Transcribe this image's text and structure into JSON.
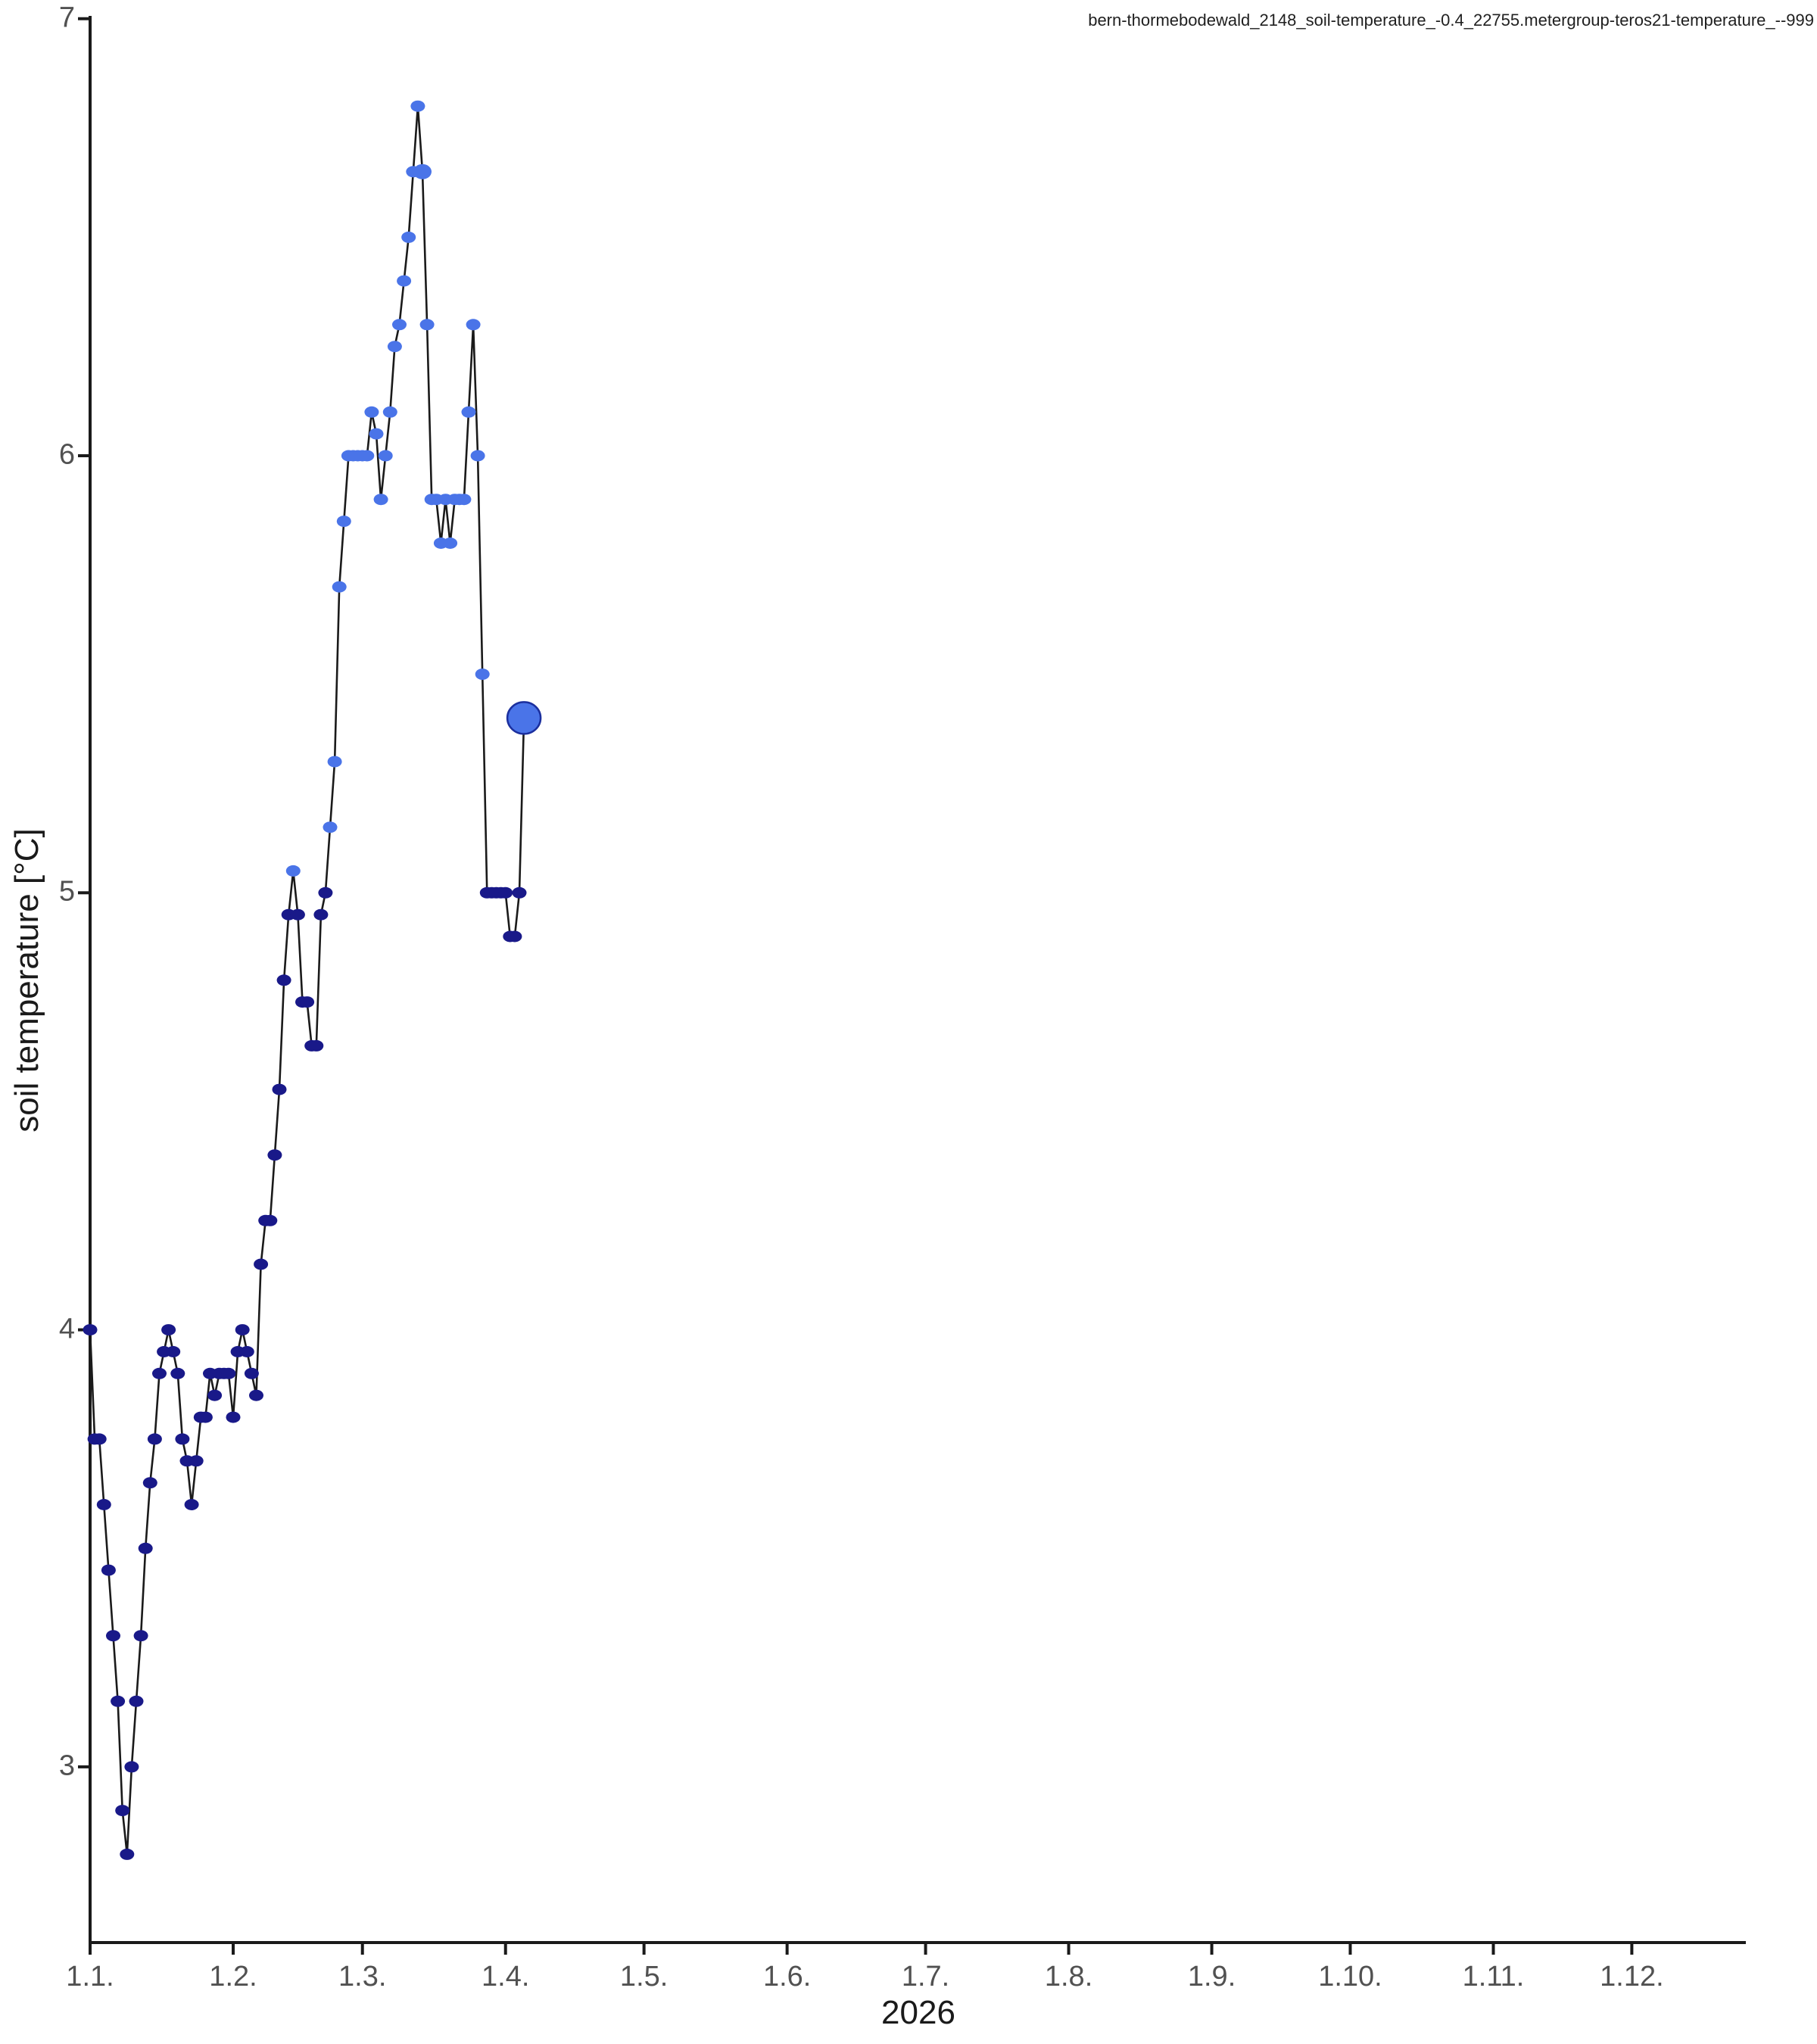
{
  "title": "bern-thormebodewald_2148_soil-temperature_-0.4_22755.metergroup-teros21-temperature_--999",
  "x_axis": {
    "year_label": "2026",
    "ticks": [
      {
        "label": "1.1.",
        "day_index": 0
      },
      {
        "label": "1.2.",
        "day_index": 31
      },
      {
        "label": "1.3.",
        "day_index": 59
      },
      {
        "label": "1.4.",
        "day_index": 90
      },
      {
        "label": "1.5.",
        "day_index": 120
      },
      {
        "label": "1.6.",
        "day_index": 151
      },
      {
        "label": "1.7.",
        "day_index": 181
      },
      {
        "label": "1.8.",
        "day_index": 212
      },
      {
        "label": "1.9.",
        "day_index": 243
      },
      {
        "label": "1.10.",
        "day_index": 273
      },
      {
        "label": "1.11.",
        "day_index": 304
      },
      {
        "label": "1.12.",
        "day_index": 334
      }
    ]
  },
  "y_axis": {
    "label": "soil temperature [°C]",
    "ticks": [
      {
        "label": "3",
        "value": 3
      },
      {
        "label": "4",
        "value": 4
      },
      {
        "label": "5",
        "value": 5
      },
      {
        "label": "6",
        "value": 6
      },
      {
        "label": "7",
        "value": 7
      }
    ]
  },
  "style": {
    "axis_color": "#1a1a1a",
    "line_color": "#1a1a1a",
    "tick_text_color": "#515151",
    "point_color_low": "#191989",
    "point_color_high": "#4a74e8",
    "big_point_stroke": "#1b2f9e",
    "color_threshold": 5.05
  },
  "chart_data": {
    "type": "scatter",
    "title": "bern-thormebodewald_2148_soil-temperature_-0.4_22755.metergroup-teros21-temperature_--999",
    "xlabel": "2026",
    "ylabel": "soil temperature [°C]",
    "x_start": "1.1.2026",
    "x_frequency": "daily",
    "x_tick_labels": [
      "1.1.",
      "1.2.",
      "1.3.",
      "1.4.",
      "1.5.",
      "1.6.",
      "1.7.",
      "1.8.",
      "1.9.",
      "1.10.",
      "1.11.",
      "1.12."
    ],
    "ylim": [
      2.6,
      7.0
    ],
    "xlim_days": [
      0,
      359
    ],
    "grid": false,
    "legend": "none",
    "line": true,
    "values": [
      4.0,
      3.75,
      3.75,
      3.6,
      3.45,
      3.3,
      3.15,
      2.9,
      2.8,
      3.0,
      3.15,
      3.3,
      3.5,
      3.65,
      3.75,
      3.9,
      3.95,
      4.0,
      3.95,
      3.9,
      3.75,
      3.7,
      3.6,
      3.7,
      3.8,
      3.8,
      3.9,
      3.85,
      3.9,
      3.9,
      3.9,
      3.8,
      3.95,
      4.0,
      3.95,
      3.9,
      3.85,
      4.15,
      4.25,
      4.25,
      4.4,
      4.55,
      4.8,
      4.95,
      5.05,
      4.95,
      4.75,
      4.75,
      4.65,
      4.65,
      4.95,
      5.0,
      5.15,
      5.3,
      5.7,
      5.85,
      6.0,
      6.0,
      6.0,
      6.0,
      6.0,
      6.1,
      6.05,
      5.9,
      6.0,
      6.1,
      6.25,
      6.3,
      6.4,
      6.5,
      6.65,
      6.8,
      6.65,
      6.3,
      5.9,
      5.9,
      5.8,
      5.9,
      5.8,
      5.9,
      5.9,
      5.9,
      6.1,
      6.3,
      6.0,
      5.5,
      5.0,
      5.0,
      5.0,
      5.0,
      5.0,
      4.9,
      4.9,
      5.0,
      5.4
    ],
    "marker": {
      "rx": 9.5,
      "ry": 7.5
    },
    "marker_overrides": [
      {
        "index": 72,
        "rx": 12,
        "ry": 10
      },
      {
        "index": 94,
        "rx": 22,
        "ry": 21,
        "stroke": true
      }
    ]
  }
}
